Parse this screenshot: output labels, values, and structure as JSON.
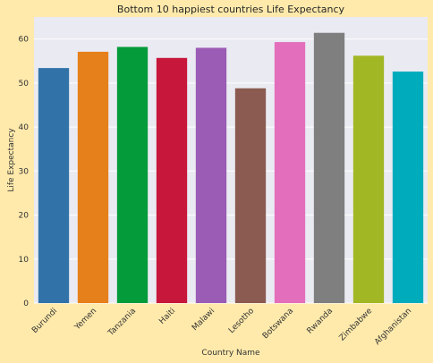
{
  "chart_data": {
    "type": "bar",
    "title": "Bottom 10 happiest countries Life Expectancy",
    "xlabel": "Country Name",
    "ylabel": "Life Expectancy",
    "categories": [
      "Burundi",
      "Yemen",
      "Tanzania",
      "Haiti",
      "Malawi",
      "Lesotho",
      "Botswana",
      "Rwanda",
      "Zimbabwe",
      "Afghanistan"
    ],
    "values": [
      53.4,
      57.1,
      58.2,
      55.7,
      58.0,
      48.8,
      59.3,
      61.4,
      56.2,
      52.6
    ],
    "colors": [
      "#3173a8",
      "#e6801b",
      "#049b3a",
      "#c7173a",
      "#9b5cb5",
      "#8b5a50",
      "#e36ebc",
      "#7f7f7f",
      "#a2b724",
      "#00acbc"
    ],
    "ylim": [
      0,
      65
    ],
    "yticks": [
      0,
      10,
      20,
      30,
      40,
      50,
      60
    ],
    "grid": true,
    "background": "#ffeaab",
    "plot_background": "#eaeaf2"
  }
}
